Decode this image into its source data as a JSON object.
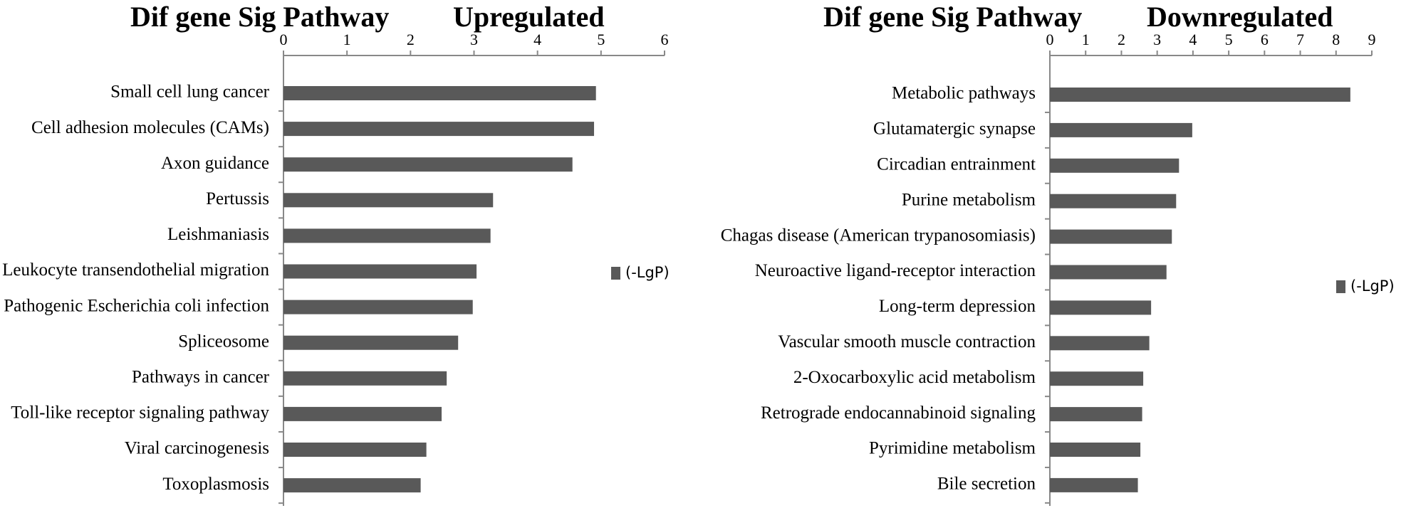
{
  "chart_data": [
    {
      "type": "bar",
      "orientation": "horizontal",
      "title": "Dif gene Sig Pathway",
      "subtitle": "Upregulated",
      "categories": [
        "Small cell lung cancer",
        "Cell adhesion molecules (CAMs)",
        "Axon guidance",
        "Pertussis",
        "Leishmaniasis",
        "Leukocyte transendothelial migration",
        "Pathogenic Escherichia coli infection",
        "Spliceosome",
        "Pathways in cancer",
        "Toll-like receptor signaling pathway",
        "Viral carcinogenesis",
        "Toxoplasmosis"
      ],
      "series": [
        {
          "name": "(-LgP)",
          "color": "#595959",
          "values": [
            4.92,
            4.89,
            4.55,
            3.3,
            3.26,
            3.04,
            2.98,
            2.75,
            2.57,
            2.49,
            2.25,
            2.16
          ]
        }
      ],
      "xlim": [
        0,
        6
      ],
      "xticks": [
        0,
        1,
        2,
        3,
        4,
        5,
        6
      ],
      "legend": "right"
    },
    {
      "type": "bar",
      "orientation": "horizontal",
      "title": "Dif gene Sig Pathway",
      "subtitle": "Downregulated",
      "categories": [
        "Metabolic pathways",
        "Glutamatergic synapse",
        "Circadian entrainment",
        "Purine metabolism",
        "Chagas disease (American trypanosomiasis)",
        "Neuroactive ligand-receptor interaction",
        "Long-term depression",
        "Vascular smooth muscle contraction",
        "2-Oxocarboxylic acid metabolism",
        "Retrograde endocannabinoid signaling",
        "Pyrimidine metabolism",
        "Bile secretion"
      ],
      "series": [
        {
          "name": "(-LgP)",
          "color": "#595959",
          "values": [
            8.4,
            3.98,
            3.61,
            3.53,
            3.41,
            3.26,
            2.83,
            2.78,
            2.61,
            2.58,
            2.53,
            2.46
          ]
        }
      ],
      "xlim": [
        0,
        9
      ],
      "xticks": [
        0,
        1,
        2,
        3,
        4,
        5,
        6,
        7,
        8,
        9
      ],
      "legend": "right"
    }
  ]
}
